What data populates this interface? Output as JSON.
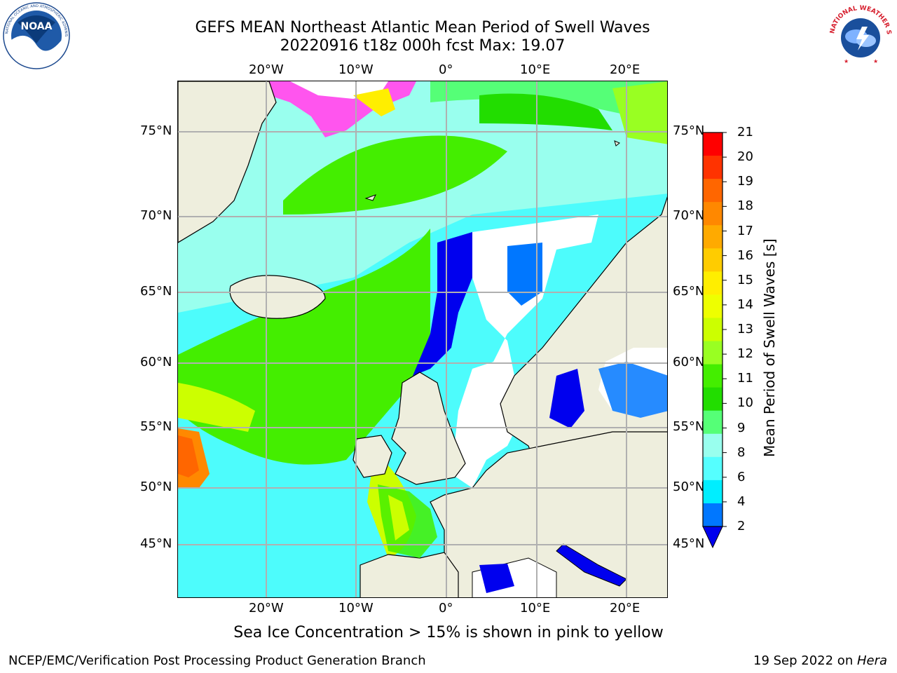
{
  "header": {
    "title_line1": "GEFS MEAN Northeast Atlantic Mean Period of Swell Waves",
    "title_line2": "20220916 t18z 000h fcst   Max: 19.07"
  },
  "logos": {
    "left": {
      "name": "NOAA",
      "text": "NOAA",
      "ring_text": "NATIONAL OCEANIC AND ATMOSPHERIC ADMINISTRATION · U.S. DEPARTMENT OF COMMERCE",
      "icon": "noaa-logo"
    },
    "right": {
      "name": "National Weather Service",
      "ring_text": "NATIONAL WEATHER SERVICE",
      "icon": "nws-logo"
    }
  },
  "map": {
    "lon_labels": [
      "20°W",
      "10°W",
      "0°",
      "10°E",
      "20°E"
    ],
    "lat_labels_left": [
      "75°N",
      "70°N",
      "65°N",
      "60°N",
      "55°N",
      "50°N",
      "45°N"
    ],
    "lat_labels_right": [
      "75°N",
      "70°N",
      "65°N",
      "60°N",
      "55°N",
      "50°N",
      "45°N"
    ],
    "ocean_color": "#4dfcfc",
    "land_color": "#eeeedd",
    "gridline_color": "#b0b0b0"
  },
  "colorbar": {
    "label": "Mean Period of Swell Waves [s]",
    "ticks": [
      "21",
      "20",
      "19",
      "18",
      "17",
      "16",
      "15",
      "14",
      "13",
      "12",
      "11",
      "10",
      "9",
      "8",
      "6",
      "4",
      "2"
    ],
    "colors": [
      "#ff0000",
      "#ff3300",
      "#ff6600",
      "#ff8800",
      "#ffaa00",
      "#ffcc00",
      "#ffee00",
      "#eeff00",
      "#ccff00",
      "#99ff22",
      "#44ee00",
      "#22dd00",
      "#55ff77",
      "#99ffee",
      "#55ffff",
      "#00eeff",
      "#0077ff"
    ],
    "extend_color": "#0000ee"
  },
  "caption": "Sea Ice Concentration > 15% is shown in pink to yellow",
  "footer": {
    "left": "NCEP/EMC/Verification Post Processing Product Generation Branch",
    "right_date": "19 Sep 2022 on ",
    "right_host": "Hera"
  }
}
